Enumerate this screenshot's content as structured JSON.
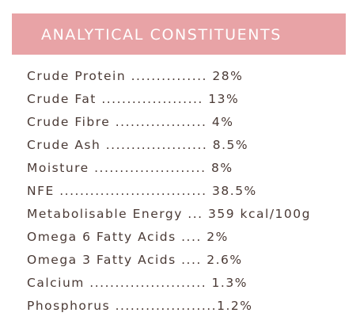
{
  "header": {
    "title": "ANALYTICAL CONSTITUENTS",
    "band_color": "#e8a3a6",
    "text_color": "#ffffff"
  },
  "constituents": [
    {
      "text": "Crude Protein ............... 28%"
    },
    {
      "text": "Crude Fat .................... 13%"
    },
    {
      "text": "Crude Fibre .................. 4%"
    },
    {
      "text": "Crude Ash .................... 8.5%"
    },
    {
      "text": "Moisture ...................... 8%"
    },
    {
      "text": "NFE ............................. 38.5%"
    },
    {
      "text": "Metabolisable Energy ... 359 kcal/100g"
    },
    {
      "text": "Omega 6 Fatty Acids .... 2%"
    },
    {
      "text": "Omega 3 Fatty Acids .... 2.6%"
    },
    {
      "text": "Calcium ....................... 1.3%"
    },
    {
      "text": "Phosphorus ....................1.2%"
    }
  ],
  "body_text_color": "#4a3a35"
}
